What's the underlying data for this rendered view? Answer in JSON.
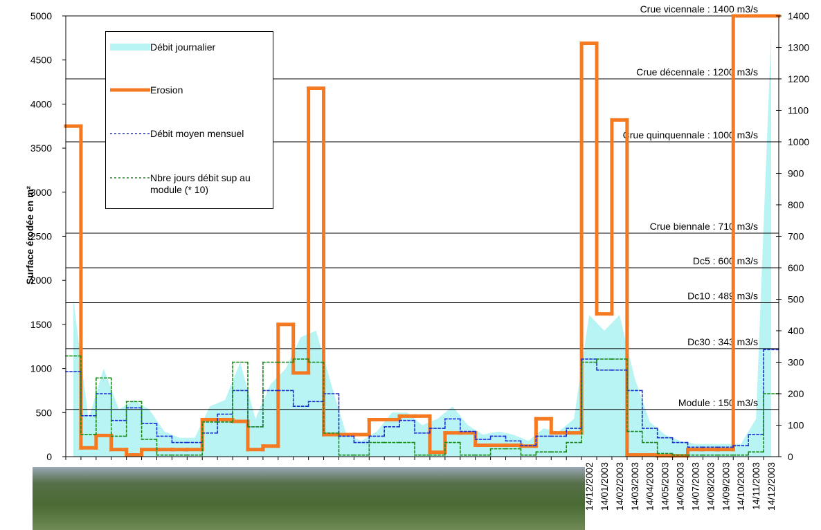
{
  "chart_data": {
    "type": "line",
    "y_label": "Surface érodée en m²",
    "categories": [
      null,
      null,
      null,
      null,
      null,
      null,
      null,
      null,
      null,
      null,
      null,
      null,
      null,
      null,
      null,
      null,
      null,
      null,
      null,
      null,
      null,
      null,
      null,
      null,
      null,
      null,
      null,
      null,
      null,
      null,
      null,
      null,
      null,
      null,
      "14/12/2002",
      "14/01/2003",
      "14/02/2003",
      "14/03/2003",
      "14/04/2003",
      "14/05/2003",
      "14/06/2003",
      "14/07/2003",
      "14/08/2003",
      "14/09/2003",
      "14/10/2003",
      "14/11/2003",
      "14/12/2003"
    ],
    "ylim": [
      0,
      5000
    ],
    "yticks": [
      0,
      500,
      1000,
      1500,
      2000,
      2500,
      3000,
      3500,
      4000,
      4500,
      5000
    ],
    "y2lim": [
      0,
      1400
    ],
    "y2ticks": [
      0,
      100,
      200,
      300,
      400,
      500,
      600,
      700,
      800,
      900,
      1000,
      1100,
      1200,
      1300,
      1400
    ],
    "series": [
      {
        "name": "Débit journalier",
        "color": "#b8f4f4",
        "style": "area",
        "axis": "y2",
        "values": [
          500,
          120,
          280,
          150,
          180,
          150,
          80,
          60,
          60,
          160,
          180,
          300,
          120,
          230,
          280,
          380,
          400,
          230,
          70,
          50,
          80,
          140,
          140,
          100,
          120,
          160,
          100,
          70,
          80,
          70,
          50,
          90,
          80,
          120,
          450,
          400,
          450,
          250,
          110,
          70,
          50,
          40,
          40,
          40,
          40,
          120,
          1350
        ]
      },
      {
        "name": "Erosion",
        "color": "#f47920",
        "style": "step",
        "values": [
          3750,
          100,
          240,
          80,
          20,
          80,
          80,
          80,
          80,
          420,
          420,
          400,
          80,
          120,
          1500,
          950,
          4180,
          250,
          250,
          250,
          420,
          420,
          460,
          460,
          50,
          270,
          270,
          130,
          130,
          130,
          120,
          430,
          270,
          270,
          4690,
          1620,
          3820,
          20,
          20,
          10,
          10,
          80,
          80,
          80,
          5000,
          5000,
          5000
        ]
      },
      {
        "name": "Débit moyen mensuel",
        "color": "#1a2fd0",
        "style": "dotted-step",
        "axis": "y2",
        "values": [
          270,
          130,
          200,
          115,
          155,
          105,
          65,
          45,
          45,
          75,
          135,
          210,
          95,
          210,
          210,
          160,
          175,
          200,
          65,
          45,
          65,
          95,
          115,
          75,
          90,
          120,
          80,
          55,
          65,
          50,
          35,
          65,
          65,
          90,
          310,
          275,
          275,
          210,
          90,
          60,
          45,
          30,
          30,
          30,
          35,
          70,
          340
        ]
      },
      {
        "name": "Nbre jours débit sup au module (* 10)",
        "color": "#1a8a1a",
        "style": "dotted-step",
        "axis": "y2",
        "values": [
          320,
          70,
          250,
          65,
          175,
          55,
          5,
          5,
          5,
          110,
          110,
          300,
          95,
          300,
          300,
          310,
          300,
          75,
          5,
          5,
          45,
          45,
          45,
          5,
          5,
          45,
          5,
          5,
          25,
          25,
          5,
          15,
          15,
          45,
          300,
          310,
          310,
          80,
          45,
          10,
          5,
          5,
          5,
          5,
          5,
          15,
          200
        ]
      }
    ],
    "reference_lines": [
      {
        "label": "Crue vicennale : 1400 m3/s",
        "value": 1400
      },
      {
        "label": "Crue décennale : 1200 m3/s",
        "value": 1200
      },
      {
        "label": "Crue quinquennale : 1000 m3/s",
        "value": 1000
      },
      {
        "label": "Crue biennale : 710 m3/s",
        "value": 710
      },
      {
        "label": "Dc5 : 600 m3/s",
        "value": 600
      },
      {
        "label": "Dc10 : 489 m3/s",
        "value": 489
      },
      {
        "label": "Dc30 : 343 m3/s",
        "value": 343
      },
      {
        "label": "Module : 150 m3/s",
        "value": 150
      }
    ]
  }
}
